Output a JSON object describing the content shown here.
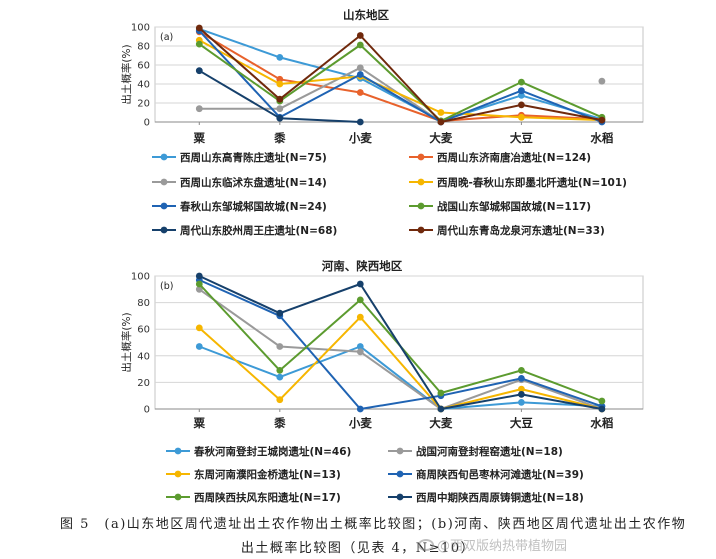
{
  "chart_data": [
    {
      "type": "line",
      "panel_label": "(a)",
      "title": "山东地区",
      "xlabel": "",
      "ylabel": "出土概率(%)",
      "categories": [
        "粟",
        "黍",
        "小麦",
        "大麦",
        "大豆",
        "水稻"
      ],
      "ylim": [
        0,
        100
      ],
      "yticks": [
        0,
        20,
        40,
        60,
        80,
        100
      ],
      "grid": true,
      "legend_position": "bottom",
      "series": [
        {
          "name": "西周山东高青陈庄遗址(N=75)",
          "color": "#3d9ad6",
          "values": [
            98,
            68,
            46,
            1,
            28,
            3
          ]
        },
        {
          "name": "西周山东济南唐冶遗址(N=124)",
          "color": "#e8622c",
          "values": [
            95,
            45,
            31,
            1,
            7,
            3
          ]
        },
        {
          "name": "西周山东临沭东盘遗址(N=14)",
          "color": "#9a9a9a",
          "values": [
            14,
            14,
            57,
            0,
            null,
            43
          ]
        },
        {
          "name": "西周晚-春秋山东即墨北阡遗址(N=101)",
          "color": "#f6b600",
          "values": [
            86,
            40,
            48,
            10,
            5,
            2
          ]
        },
        {
          "name": "春秋山东邹城邾国故城(N=24)",
          "color": "#1f63b3",
          "values": [
            96,
            5,
            50,
            0,
            33,
            0
          ]
        },
        {
          "name": "战国山东邹城邾国故城(N=117)",
          "color": "#5c9b2f",
          "values": [
            82,
            22,
            81,
            1,
            42,
            5
          ]
        },
        {
          "name": "周代山东胶州周王庄遗址(N=68)",
          "color": "#16406b",
          "values": [
            54,
            4,
            0,
            null,
            null,
            null
          ]
        },
        {
          "name": "周代山东青岛龙泉河东遗址(N=33)",
          "color": "#70290c",
          "values": [
            99,
            24,
            91,
            0,
            18,
            2
          ]
        }
      ]
    },
    {
      "type": "line",
      "panel_label": "(b)",
      "title": "河南、陕西地区",
      "xlabel": "",
      "ylabel": "出土概率(%)",
      "categories": [
        "粟",
        "黍",
        "小麦",
        "大麦",
        "大豆",
        "水稻"
      ],
      "ylim": [
        0,
        100
      ],
      "yticks": [
        0,
        20,
        40,
        60,
        80,
        100
      ],
      "grid": true,
      "legend_position": "bottom",
      "series": [
        {
          "name": "春秋河南登封王城岗遗址(N=46)",
          "color": "#3d9ad6",
          "values": [
            47,
            24,
            47,
            0,
            5,
            2
          ]
        },
        {
          "name": "战国河南登封程窑遗址(N=18)",
          "color": "#9a9a9a",
          "values": [
            90,
            47,
            43,
            0,
            22,
            0
          ]
        },
        {
          "name": "东周河南濮阳金桥遗址(N=13)",
          "color": "#f6b600",
          "values": [
            61,
            7,
            69,
            0,
            15,
            0
          ]
        },
        {
          "name": "商周陕西旬邑枣林河滩遗址(N=39)",
          "color": "#1f63b3",
          "values": [
            97,
            70,
            0,
            10,
            23,
            2
          ]
        },
        {
          "name": "西周陕西扶风东阳遗址(N=17)",
          "color": "#5c9b2f",
          "values": [
            94,
            29,
            82,
            12,
            29,
            6
          ]
        },
        {
          "name": "西周中期陕西周原铸铜遗址(N=18)",
          "color": "#16406b",
          "values": [
            100,
            72,
            94,
            0,
            11,
            0
          ]
        }
      ]
    }
  ],
  "caption": {
    "line1": "图 5　(a)山东地区周代遗址出土农作物出土概率比较图；(b)河南、陕西地区周代遗址出土农作物",
    "line2": "出土概率比较图（见表 4，N≥10）"
  },
  "watermark": "@西双版纳热带植物园"
}
